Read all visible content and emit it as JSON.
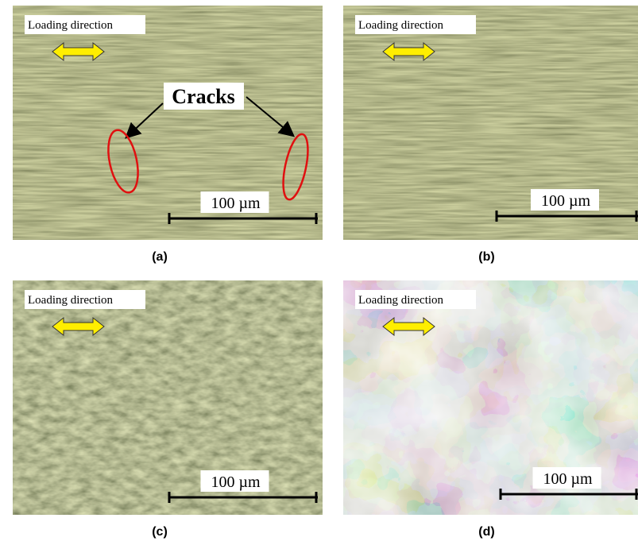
{
  "annotation": "Cracks",
  "panels": [
    {
      "caption": "(a)",
      "loading_label": "Loading direction",
      "scale_label": "100 µm"
    },
    {
      "caption": "(b)",
      "loading_label": "Loading direction",
      "scale_label": "100 µm"
    },
    {
      "caption": "(c)",
      "loading_label": "Loading direction",
      "scale_label": "100 µm"
    },
    {
      "caption": "(d)",
      "loading_label": "Loading direction",
      "scale_label": "100 µm"
    }
  ]
}
